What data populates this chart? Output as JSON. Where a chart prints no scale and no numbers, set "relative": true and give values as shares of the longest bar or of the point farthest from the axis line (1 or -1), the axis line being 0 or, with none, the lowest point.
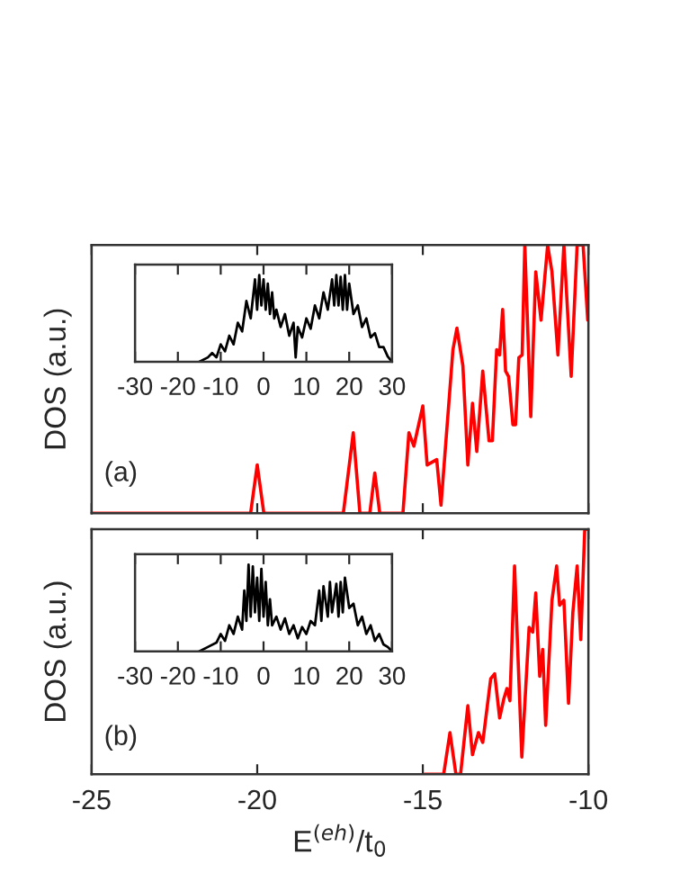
{
  "chart_data": [
    {
      "type": "line",
      "relative": true,
      "ylabel": "DOS (a.u.)",
      "annotations": [
        "(a)"
      ],
      "xlim": [
        -25,
        -10
      ],
      "xticks": [
        -25,
        -20,
        -15,
        -10
      ],
      "tick_labels": false,
      "series": [
        {
          "color": "#ff0000",
          "x": [
            -25,
            -20.2,
            -20.0,
            -19.8,
            -17.4,
            -17.1,
            -16.9,
            -16.6,
            -16.45,
            -16.3,
            -15.6,
            -15.42,
            -15.27,
            -15.0,
            -14.87,
            -14.58,
            -14.45,
            -14.09,
            -13.97,
            -13.79,
            -13.64,
            -13.5,
            -13.37,
            -13.19,
            -13.0,
            -12.9,
            -12.77,
            -12.68,
            -12.59,
            -12.5,
            -12.41,
            -12.28,
            -12.2,
            -12.1,
            -12.0,
            -11.92,
            -11.74,
            -11.59,
            -11.43,
            -11.23,
            -11.1,
            -10.92,
            -10.74,
            -10.52,
            -10.34,
            -10.16,
            -10.02
          ],
          "values": [
            0,
            0,
            0.18,
            0,
            0,
            0.3,
            0,
            0,
            0.15,
            0,
            0,
            0.3,
            0.25,
            0.4,
            0.18,
            0.2,
            0.03,
            0.61,
            0.69,
            0.55,
            0.18,
            0.41,
            0.23,
            0.53,
            0.27,
            0.27,
            0.61,
            0.59,
            0.76,
            0.53,
            0.51,
            0.33,
            0.33,
            0.58,
            0.59,
            1.0,
            0.36,
            0.9,
            0.72,
            1.0,
            0.9,
            0.59,
            1.0,
            0.51,
            1.0,
            1.0,
            0.72
          ]
        }
      ]
    },
    {
      "type": "line",
      "relative": true,
      "xlim": [
        -30,
        30
      ],
      "xticks": [
        -30,
        -20,
        -10,
        0,
        10,
        20,
        30
      ],
      "tick_labels": "x",
      "series": [
        {
          "color": "#000000",
          "x": [
            -15,
            -13,
            -12,
            -11,
            -10,
            -9,
            -8,
            -7,
            -6,
            -5,
            -4,
            -3,
            -2,
            -1.5,
            -1,
            -0.5,
            0,
            0.5,
            1,
            1.5,
            2,
            2.5,
            3,
            4,
            5,
            6,
            7,
            7.5,
            8,
            9,
            10,
            11,
            12,
            13,
            14,
            15,
            16,
            16.5,
            17,
            17.5,
            18,
            18.5,
            19,
            19.5,
            20,
            21,
            22,
            23,
            24,
            25,
            26,
            27,
            28,
            29,
            30
          ],
          "values": [
            0,
            0.05,
            0.1,
            0.05,
            0.2,
            0.12,
            0.3,
            0.2,
            0.45,
            0.35,
            0.7,
            0.5,
            0.95,
            0.6,
            1.0,
            0.65,
            0.95,
            0.6,
            0.9,
            0.55,
            0.8,
            0.5,
            0.6,
            0.4,
            0.55,
            0.3,
            0.45,
            0.05,
            0.4,
            0.28,
            0.5,
            0.38,
            0.65,
            0.5,
            0.8,
            0.6,
            0.95,
            0.65,
            1.0,
            0.65,
            0.98,
            0.6,
            1.0,
            0.6,
            0.9,
            0.55,
            0.65,
            0.4,
            0.5,
            0.28,
            0.33,
            0.17,
            0.17,
            0.06,
            0
          ]
        }
      ]
    },
    {
      "type": "line",
      "relative": true,
      "ylabel": "DOS (a.u.)",
      "xlabel": "E$^{(eh)}$/t$_{0}$",
      "annotations": [
        "(b)"
      ],
      "xlim": [
        -25,
        -10
      ],
      "xticks": [
        -25,
        -20,
        -15,
        -10
      ],
      "tick_labels": "x",
      "series": [
        {
          "color": "#ff0000",
          "x": [
            -14.95,
            -14.37,
            -14.18,
            -14.0,
            -13.86,
            -13.64,
            -13.5,
            -13.32,
            -13.19,
            -12.95,
            -12.83,
            -12.68,
            -12.55,
            -12.46,
            -12.37,
            -12.23,
            -12.01,
            -11.79,
            -11.68,
            -11.59,
            -11.47,
            -11.38,
            -11.29,
            -11.1,
            -10.96,
            -10.87,
            -10.74,
            -10.6,
            -10.47,
            -10.34,
            -10.23,
            -10.11,
            -10.02
          ],
          "values": [
            0,
            0,
            0.17,
            0,
            0,
            0.28,
            0.08,
            0.17,
            0.13,
            0.39,
            0.41,
            0.23,
            0.31,
            0.35,
            0.3,
            0.85,
            0.07,
            0.6,
            0.58,
            0.74,
            0.4,
            0.51,
            0.2,
            0.71,
            0.85,
            0.69,
            0.71,
            0.29,
            0.66,
            0.85,
            0.55,
            1.0,
            1.0
          ]
        }
      ]
    },
    {
      "type": "line",
      "relative": true,
      "xlim": [
        -30,
        30
      ],
      "xticks": [
        -30,
        -20,
        -10,
        0,
        10,
        20,
        30
      ],
      "tick_labels": "x",
      "series": [
        {
          "color": "#000000",
          "x": [
            -15,
            -13,
            -11,
            -10,
            -9,
            -8,
            -7,
            -6,
            -5,
            -4.5,
            -4,
            -3.5,
            -3,
            -2.5,
            -2,
            -1.5,
            -1,
            -0.5,
            0,
            0.5,
            1,
            1.5,
            2,
            3,
            4,
            5,
            6,
            7,
            8,
            9,
            10,
            11,
            12,
            13,
            13.5,
            14,
            15,
            15.5,
            16,
            17,
            17.5,
            18,
            18.5,
            19,
            20,
            21,
            22,
            23,
            24,
            25,
            26,
            27,
            28,
            29,
            30
          ],
          "values": [
            0,
            0.05,
            0.1,
            0.2,
            0.12,
            0.3,
            0.2,
            0.4,
            0.25,
            0.7,
            0.35,
            1.0,
            0.4,
            0.98,
            0.45,
            0.85,
            0.35,
            0.95,
            0.4,
            0.8,
            0.3,
            0.6,
            0.3,
            0.4,
            0.25,
            0.38,
            0.2,
            0.3,
            0.15,
            0.28,
            0.2,
            0.35,
            0.3,
            0.7,
            0.35,
            0.75,
            0.4,
            0.8,
            0.45,
            0.78,
            0.4,
            0.8,
            0.45,
            0.85,
            0.5,
            0.55,
            0.3,
            0.4,
            0.2,
            0.3,
            0.12,
            0.2,
            0.08,
            0.05,
            0
          ]
        }
      ]
    }
  ]
}
